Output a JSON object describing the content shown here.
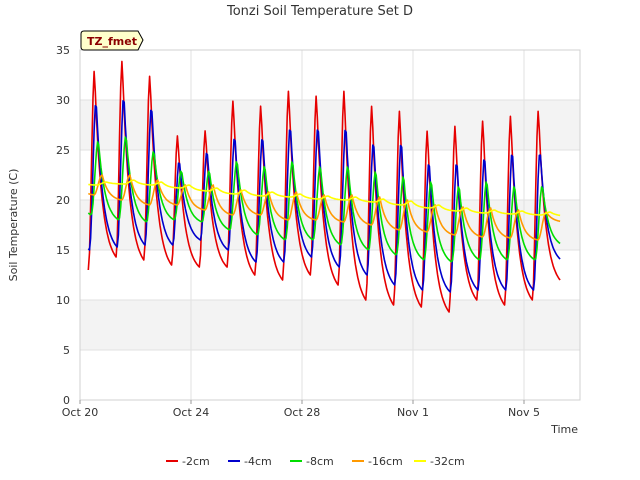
{
  "chart_data": {
    "type": "line",
    "title": "Tonzi Soil Temperature Set D",
    "xlabel": "Time",
    "ylabel": "Soil Temperature (C)",
    "badge": "TZ_fmet",
    "ylim": [
      0,
      35
    ],
    "xlim": [
      "Oct 20",
      "Nov 7"
    ],
    "y_ticks": [
      0,
      5,
      10,
      15,
      20,
      25,
      30,
      35
    ],
    "x_ticks": [
      {
        "day": 0,
        "label": "Oct 20"
      },
      {
        "day": 4,
        "label": "Oct 24"
      },
      {
        "day": 8,
        "label": "Oct 28"
      },
      {
        "day": 12,
        "label": "Nov 1"
      },
      {
        "day": 16,
        "label": "Nov 5"
      }
    ],
    "grid": true,
    "legend_position": "bottom",
    "x_start_day": 0.3,
    "x_end_day": 17.3,
    "points_per_day": 24,
    "series": [
      {
        "name": "-2cm",
        "color": "#e60000",
        "peaks": [
          33.0,
          34.0,
          32.5,
          26.5,
          27.0,
          30.0,
          29.5,
          31.0,
          30.5,
          31.0,
          29.5,
          29.0,
          27.0,
          27.5,
          28.0,
          28.5,
          29.0
        ],
        "troughs": [
          13.0,
          14.3,
          14.0,
          13.5,
          13.3,
          13.3,
          12.5,
          12.0,
          12.5,
          11.5,
          10.0,
          9.5,
          9.3,
          8.8,
          10.0,
          9.5,
          10.0,
          12.0
        ],
        "peak_phase": 0.52,
        "trough_phase": 0.3
      },
      {
        "name": "-4cm",
        "color": "#0000cc",
        "peaks": [
          30.0,
          30.5,
          29.5,
          24.0,
          25.0,
          26.5,
          26.5,
          27.5,
          27.5,
          27.5,
          26.0,
          26.0,
          24.0,
          24.0,
          24.5,
          25.0,
          25.0
        ],
        "troughs": [
          15.0,
          15.3,
          15.5,
          15.5,
          16.0,
          15.0,
          13.8,
          13.8,
          14.3,
          13.3,
          12.5,
          11.5,
          11.0,
          10.8,
          11.0,
          11.0,
          11.0,
          14.0
        ],
        "peak_phase": 0.58,
        "trough_phase": 0.34
      },
      {
        "name": "-8cm",
        "color": "#00dd00",
        "peaks": [
          26.0,
          26.5,
          25.0,
          23.0,
          23.0,
          24.0,
          23.5,
          24.0,
          23.5,
          23.5,
          23.0,
          22.5,
          22.0,
          21.5,
          22.0,
          21.5,
          21.5
        ],
        "troughs": [
          18.5,
          18.0,
          17.8,
          18.0,
          17.8,
          17.0,
          16.5,
          16.0,
          16.0,
          15.5,
          15.0,
          14.5,
          14.0,
          13.8,
          14.0,
          14.0,
          14.0,
          15.5
        ],
        "peak_phase": 0.66,
        "trough_phase": 0.4
      },
      {
        "name": "-16cm",
        "color": "#ff9900",
        "peaks": [
          22.5,
          22.5,
          22.0,
          21.5,
          21.5,
          21.0,
          20.8,
          20.8,
          20.5,
          20.5,
          20.3,
          20.0,
          19.5,
          19.3,
          19.2,
          19.0,
          18.8
        ],
        "troughs": [
          20.5,
          20.0,
          19.5,
          19.5,
          19.0,
          18.5,
          18.5,
          18.0,
          18.0,
          17.8,
          17.5,
          17.0,
          16.8,
          16.5,
          16.3,
          16.2,
          16.0,
          17.8
        ],
        "peak_phase": 0.8,
        "trough_phase": 0.5
      },
      {
        "name": "-32cm",
        "color": "#ffff00",
        "peaks": [
          21.8,
          22.0,
          21.8,
          21.5,
          21.2,
          21.0,
          20.8,
          20.6,
          20.4,
          20.3,
          20.1,
          19.9,
          19.5,
          19.2,
          19.0,
          18.9,
          18.8
        ],
        "troughs": [
          21.5,
          21.6,
          21.5,
          21.2,
          20.9,
          20.6,
          20.4,
          20.3,
          20.1,
          20.0,
          19.8,
          19.5,
          19.2,
          18.9,
          18.7,
          18.6,
          18.5,
          18.4
        ],
        "peak_phase": 0.95,
        "trough_phase": 0.6
      }
    ]
  }
}
